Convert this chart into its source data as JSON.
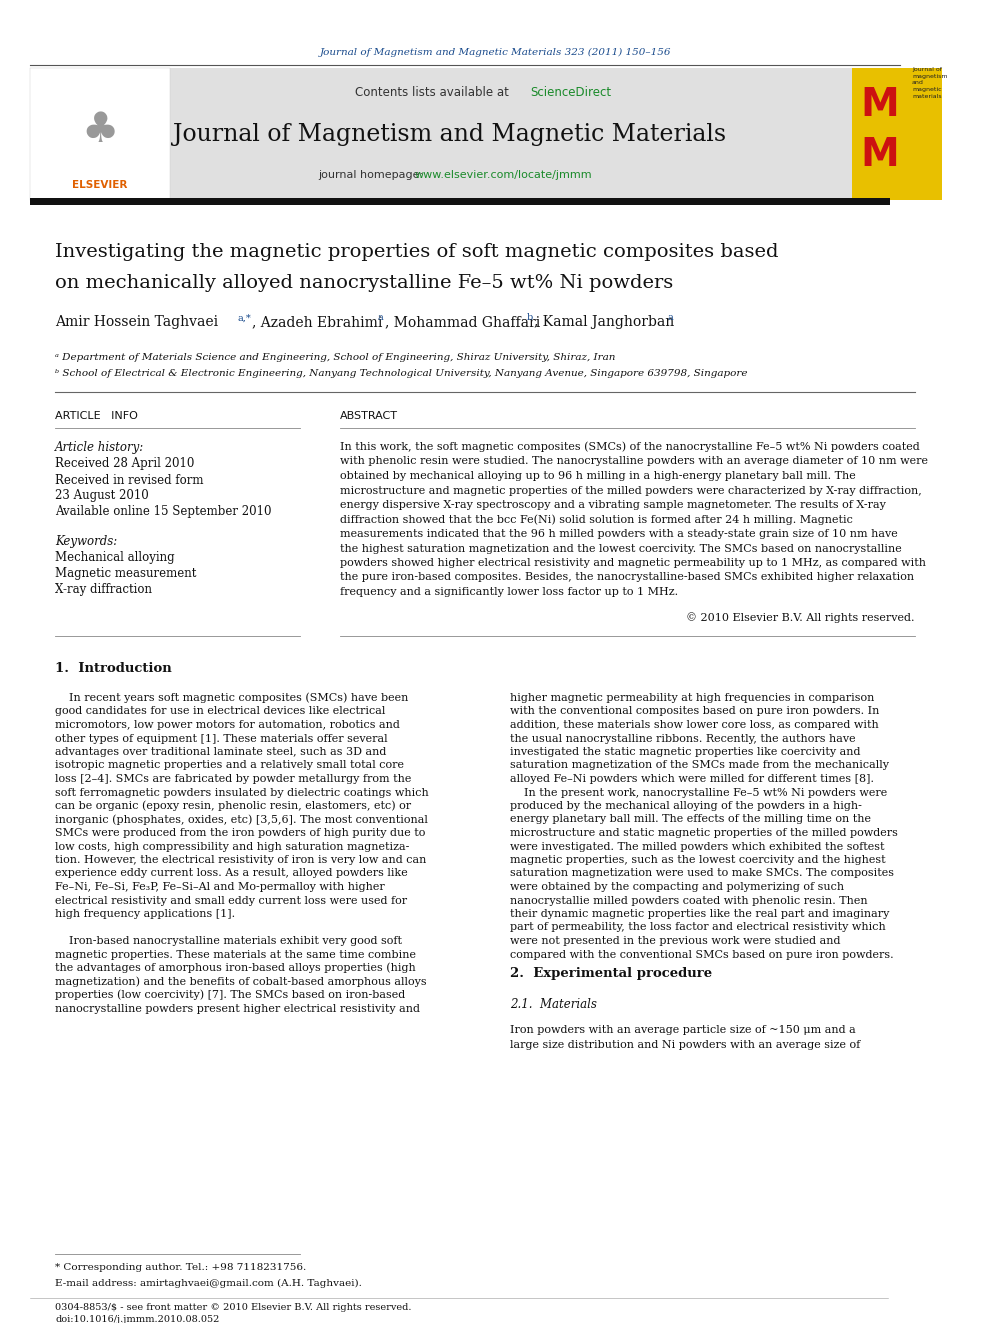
{
  "page_width": 9.92,
  "page_height": 13.23,
  "bg_color": "#ffffff",
  "journal_ref": "Journal of Magnetism and Magnetic Materials 323 (2011) 150–156",
  "journal_ref_color": "#1a4b8c",
  "sciencedirect_color": "#1a8a2a",
  "journal_title": "Journal of Magnetism and Magnetic Materials",
  "homepage_url_color": "#1a8a2a",
  "header_bg": "#e0e0e0",
  "elsevier_color": "#e06000",
  "paper_title_line1": "Investigating the magnetic properties of soft magnetic composites based",
  "paper_title_line2": "on mechanically alloyed nanocrystalline Fe–5 wt% Ni powders",
  "affil_a": "ᵃ Department of Materials Science and Engineering, School of Engineering, Shiraz University, Shiraz, Iran",
  "affil_b": "ᵇ School of Electrical & Electronic Engineering, Nanyang Technological University, Nanyang Avenue, Singapore 639798, Singapore",
  "art_info_header": "ARTICLE   INFO",
  "abstract_header": "ABSTRACT",
  "art_history_italic": "Article history:",
  "received": "Received 28 April 2010",
  "revised_label": "Received in revised form",
  "revised_date": "23 August 2010",
  "available": "Available online 15 September 2010",
  "keywords_italic": "Keywords:",
  "kw1": "Mechanical alloying",
  "kw2": "Magnetic measurement",
  "kw3": "X-ray diffraction",
  "abstract_lines": [
    "In this work, the soft magnetic composites (SMCs) of the nanocrystalline Fe–5 wt% Ni powders coated",
    "with phenolic resin were studied. The nanocrystalline powders with an average diameter of 10 nm were",
    "obtained by mechanical alloying up to 96 h milling in a high-energy planetary ball mill. The",
    "microstructure and magnetic properties of the milled powders were characterized by X-ray diffraction,",
    "energy dispersive X-ray spectroscopy and a vibrating sample magnetometer. The results of X-ray",
    "diffraction showed that the bcc Fe(Ni) solid solution is formed after 24 h milling. Magnetic",
    "measurements indicated that the 96 h milled powders with a steady-state grain size of 10 nm have",
    "the highest saturation magnetization and the lowest coercivity. The SMCs based on nanocrystalline",
    "powders showed higher electrical resistivity and magnetic permeability up to 1 MHz, as compared with",
    "the pure iron-based composites. Besides, the nanocrystalline-based SMCs exhibited higher relaxation",
    "frequency and a significantly lower loss factor up to 1 MHz."
  ],
  "copyright": "© 2010 Elsevier B.V. All rights reserved.",
  "intro_header": "1.  Introduction",
  "intro_c1": [
    "    In recent years soft magnetic composites (SMCs) have been",
    "good candidates for use in electrical devices like electrical",
    "micromotors, low power motors for automation, robotics and",
    "other types of equipment [1]. These materials offer several",
    "advantages over traditional laminate steel, such as 3D and",
    "isotropic magnetic properties and a relatively small total core",
    "loss [2–4]. SMCs are fabricated by powder metallurgy from the",
    "soft ferromagnetic powders insulated by dielectric coatings which",
    "can be organic (epoxy resin, phenolic resin, elastomers, etc) or",
    "inorganic (phosphates, oxides, etc) [3,5,6]. The most conventional",
    "SMCs were produced from the iron powders of high purity due to",
    "low costs, high compressibility and high saturation magnetiza-",
    "tion. However, the electrical resistivity of iron is very low and can",
    "experience eddy current loss. As a result, alloyed powders like",
    "Fe–Ni, Fe–Si, Fe₃P, Fe–Si–Al and Mo-permalloy with higher",
    "electrical resistivity and small eddy current loss were used for",
    "high frequency applications [1].",
    "",
    "    Iron-based nanocrystalline materials exhibit very good soft",
    "magnetic properties. These materials at the same time combine",
    "the advantages of amorphous iron-based alloys properties (high",
    "magnetization) and the benefits of cobalt-based amorphous alloys",
    "properties (low coercivity) [7]. The SMCs based on iron-based",
    "nanocrystalline powders present higher electrical resistivity and"
  ],
  "intro_c2": [
    "higher magnetic permeability at high frequencies in comparison",
    "with the conventional composites based on pure iron powders. In",
    "addition, these materials show lower core loss, as compared with",
    "the usual nanocrystalline ribbons. Recently, the authors have",
    "investigated the static magnetic properties like coercivity and",
    "saturation magnetization of the SMCs made from the mechanically",
    "alloyed Fe–Ni powders which were milled for different times [8].",
    "    In the present work, nanocrystalline Fe–5 wt% Ni powders were",
    "produced by the mechanical alloying of the powders in a high-",
    "energy planetary ball mill. The effects of the milling time on the",
    "microstructure and static magnetic properties of the milled powders",
    "were investigated. The milled powders which exhibited the softest",
    "magnetic properties, such as the lowest coercivity and the highest",
    "saturation magnetization were used to make SMCs. The composites",
    "were obtained by the compacting and polymerizing of such",
    "nanocrystallie milled powders coated with phenolic resin. Then",
    "their dynamic magnetic properties like the real part and imaginary",
    "part of permeability, the loss factor and electrical resistivity which",
    "were not presented in the previous work were studied and",
    "compared with the conventional SMCs based on pure iron powders."
  ],
  "sec2_header": "2.  Experimental procedure",
  "sec21_header": "2.1.  Materials",
  "sec21_lines": [
    "Iron powders with an average particle size of ~150 μm and a",
    "large size distribution and Ni powders with an average size of"
  ],
  "footnote1": "* Corresponding author. Tel.: +98 7118231756.",
  "footnote2": "E-mail address: amirtaghvaei@gmail.com (A.H. Taghvaei).",
  "footer1": "0304-8853/$ - see front matter © 2010 Elsevier B.V. All rights reserved.",
  "footer2": "doi:10.1016/j.jmmm.2010.08.052"
}
